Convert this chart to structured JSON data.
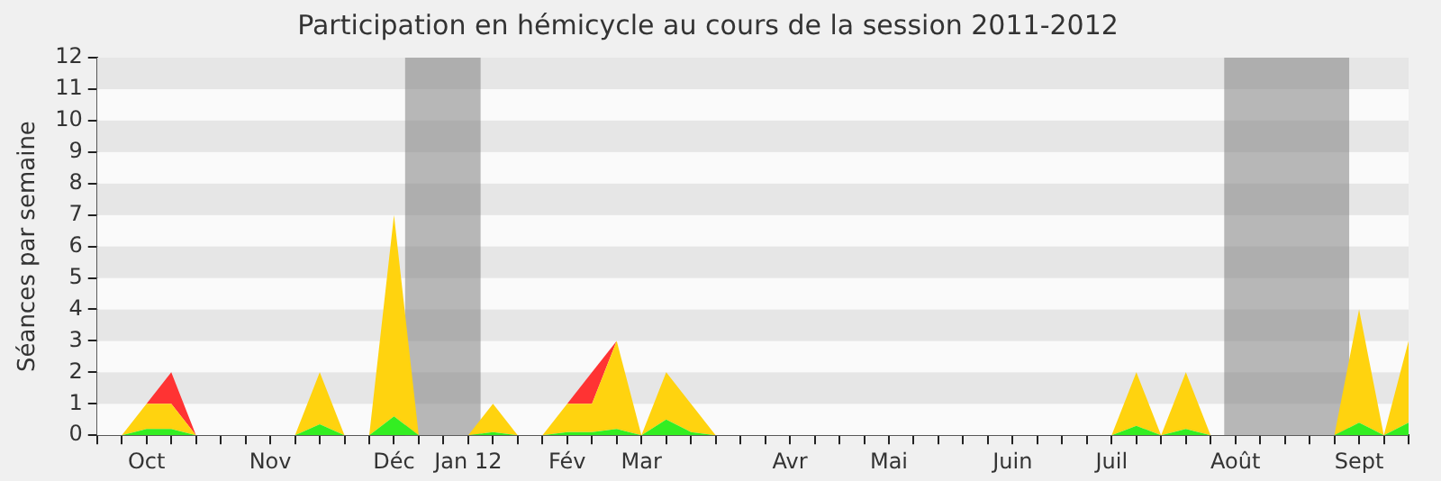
{
  "chart_data": {
    "type": "area",
    "stacked": true,
    "title": "Participation en hémicycle au cours de la session 2011-2012",
    "ylabel": "Séances par semaine",
    "categories": [
      null,
      null,
      "Oct",
      null,
      null,
      null,
      null,
      "Nov",
      null,
      null,
      null,
      null,
      "Déc",
      null,
      null,
      "Jan 12",
      null,
      null,
      null,
      "Fév",
      null,
      null,
      "Mar",
      null,
      null,
      null,
      null,
      null,
      "Avr",
      null,
      null,
      null,
      "Mai",
      null,
      null,
      null,
      null,
      "Juin",
      null,
      null,
      null,
      "Juil",
      null,
      null,
      null,
      null,
      "Août",
      null,
      null,
      null,
      null,
      "Sept",
      null,
      null
    ],
    "series": [
      {
        "color": "#33ee22",
        "values": [
          0,
          0,
          0.2,
          0.2,
          0,
          0,
          0,
          0,
          0,
          0.35,
          0,
          0,
          0.6,
          0,
          0,
          0,
          0.1,
          0,
          0,
          0.1,
          0.1,
          0.2,
          0,
          0.5,
          0.1,
          0,
          0,
          0,
          0,
          0,
          0,
          0,
          0,
          0,
          0,
          0,
          0,
          0,
          0,
          0,
          0,
          0,
          0.3,
          0,
          0.2,
          0,
          0,
          0,
          0,
          0,
          0,
          0.4,
          0,
          0.4
        ]
      },
      {
        "color": "#ffd30f",
        "values": [
          0,
          0,
          0.8,
          0.8,
          0,
          0,
          0,
          0,
          0,
          1.65,
          0,
          0,
          6.4,
          0,
          0,
          0,
          0.9,
          0,
          0,
          0.9,
          0.9,
          2.8,
          0,
          1.5,
          0.9,
          0,
          0,
          0,
          0,
          0,
          0,
          0,
          0,
          0,
          0,
          0,
          0,
          0,
          0,
          0,
          0,
          0,
          1.7,
          0,
          1.8,
          0,
          0,
          0,
          0,
          0,
          0,
          3.6,
          0,
          2.6
        ]
      },
      {
        "color": "#ff3333",
        "values": [
          null,
          null,
          0,
          1,
          0,
          null,
          null,
          null,
          null,
          null,
          null,
          null,
          null,
          null,
          null,
          null,
          null,
          null,
          null,
          0,
          1,
          0,
          null,
          null,
          null,
          null,
          null,
          null,
          null,
          null,
          null,
          null,
          null,
          null,
          null,
          null,
          null,
          null,
          null,
          null,
          null,
          null,
          null,
          null,
          null,
          null,
          null,
          null,
          null,
          null,
          null,
          null,
          null,
          null
        ]
      }
    ],
    "ylim": [
      0,
      12
    ],
    "yticks": [
      0,
      1,
      2,
      3,
      4,
      5,
      6,
      7,
      8,
      9,
      10,
      11,
      12
    ],
    "marker": "none"
  }
}
